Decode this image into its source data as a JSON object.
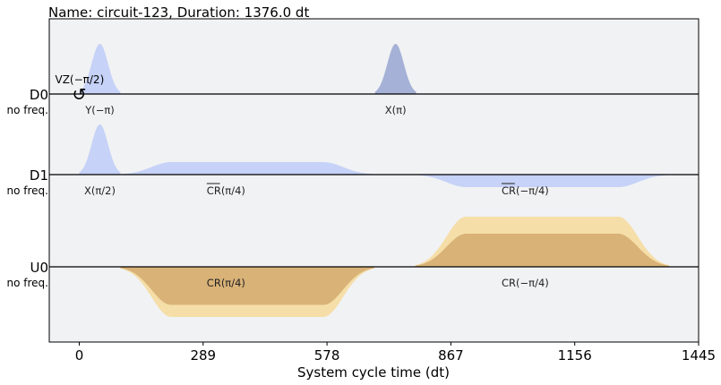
{
  "chart_data": {
    "type": "area",
    "title": "Name: circuit-123, Duration: 1376.0 dt",
    "xlabel": "System cycle time (dt)",
    "ylabel": "",
    "xlim": [
      -70,
      1445
    ],
    "xticks": [
      0,
      289,
      578,
      867,
      1156,
      1445
    ],
    "grid": false,
    "background_color": "#f1f2f4",
    "colors": {
      "drive_light": "#c6d2f7",
      "drive_dark": "#a5b1d6",
      "control_outer": "#f5dea8",
      "control_inner": "#d9b277"
    },
    "channels": [
      {
        "name": "D0",
        "freq_label": "no freq.",
        "pulses": [
          {
            "label": "Y(−π)",
            "type": "gaussian",
            "t0": 0,
            "t1": 96,
            "amp": 1.0,
            "color": "drive_light",
            "sign": 1
          },
          {
            "label": "X(π)",
            "type": "gaussian",
            "t0": 690,
            "t1": 786,
            "amp": 1.0,
            "color": "drive_dark",
            "sign": 1
          }
        ],
        "frame_changes": [
          {
            "label": "VZ(−π/2)",
            "t": 0,
            "icon": "rotate-icon"
          }
        ]
      },
      {
        "name": "D1",
        "freq_label": "no freq.",
        "pulses": [
          {
            "label": "X(π/2)",
            "type": "gaussian",
            "t0": 0,
            "t1": 96,
            "amp": 1.0,
            "color": "drive_light",
            "sign": 1
          },
          {
            "label": "CR(π/4)",
            "label_bar": true,
            "type": "gaussian_square",
            "t0": 96,
            "t1": 688,
            "amp": 0.25,
            "color": "drive_light",
            "sign": 1
          },
          {
            "label": "CR(−π/4)",
            "label_bar": true,
            "type": "gaussian_square",
            "t0": 784,
            "t1": 1376,
            "amp": 0.25,
            "color": "drive_light",
            "sign": -1
          }
        ]
      },
      {
        "name": "U0",
        "freq_label": "no freq.",
        "pulses": [
          {
            "label": "CR(π/4)",
            "type": "gaussian_square",
            "t0": 96,
            "t1": 688,
            "amp": 1.0,
            "inner_amp": 0.76,
            "color": "control_outer",
            "inner_color": "control_inner",
            "sign": -1
          },
          {
            "label": "CR(−π/4)",
            "type": "gaussian_square",
            "t0": 784,
            "t1": 1376,
            "amp": 1.0,
            "inner_amp": 0.66,
            "color": "control_outer",
            "inner_color": "control_inner",
            "sign": 1
          }
        ]
      }
    ]
  }
}
